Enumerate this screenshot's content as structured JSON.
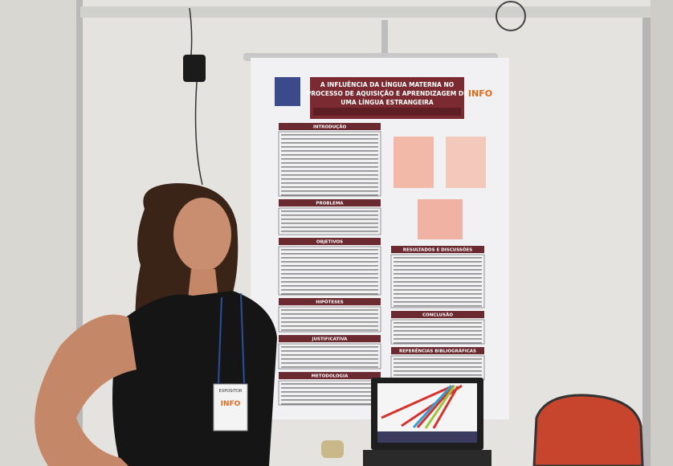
{
  "poster": {
    "title_lines": [
      "A INFLUÊNCIA DA LÍNGUA MATERNA NO",
      "PROCESSO DE AQUISIÇÃO E APRENDIZAGEM DE",
      "UMA LÍNGUA ESTRANGEIRA"
    ],
    "logo": "INFO",
    "left_sections": [
      "INTRODUÇÃO",
      "PROBLEMA",
      "OBJETIVOS",
      "HIPÓTESES",
      "JUSTIFICATIVA",
      "METODOLOGIA"
    ],
    "right_sections": [
      "RESULTADOS E DISCUSSÕES",
      "CONCLUSÃO",
      "REFERÊNCIAS BIBLIOGRÁFICAS"
    ]
  },
  "badge": {
    "label": "EXPOSITOR",
    "logo": "INFO"
  }
}
